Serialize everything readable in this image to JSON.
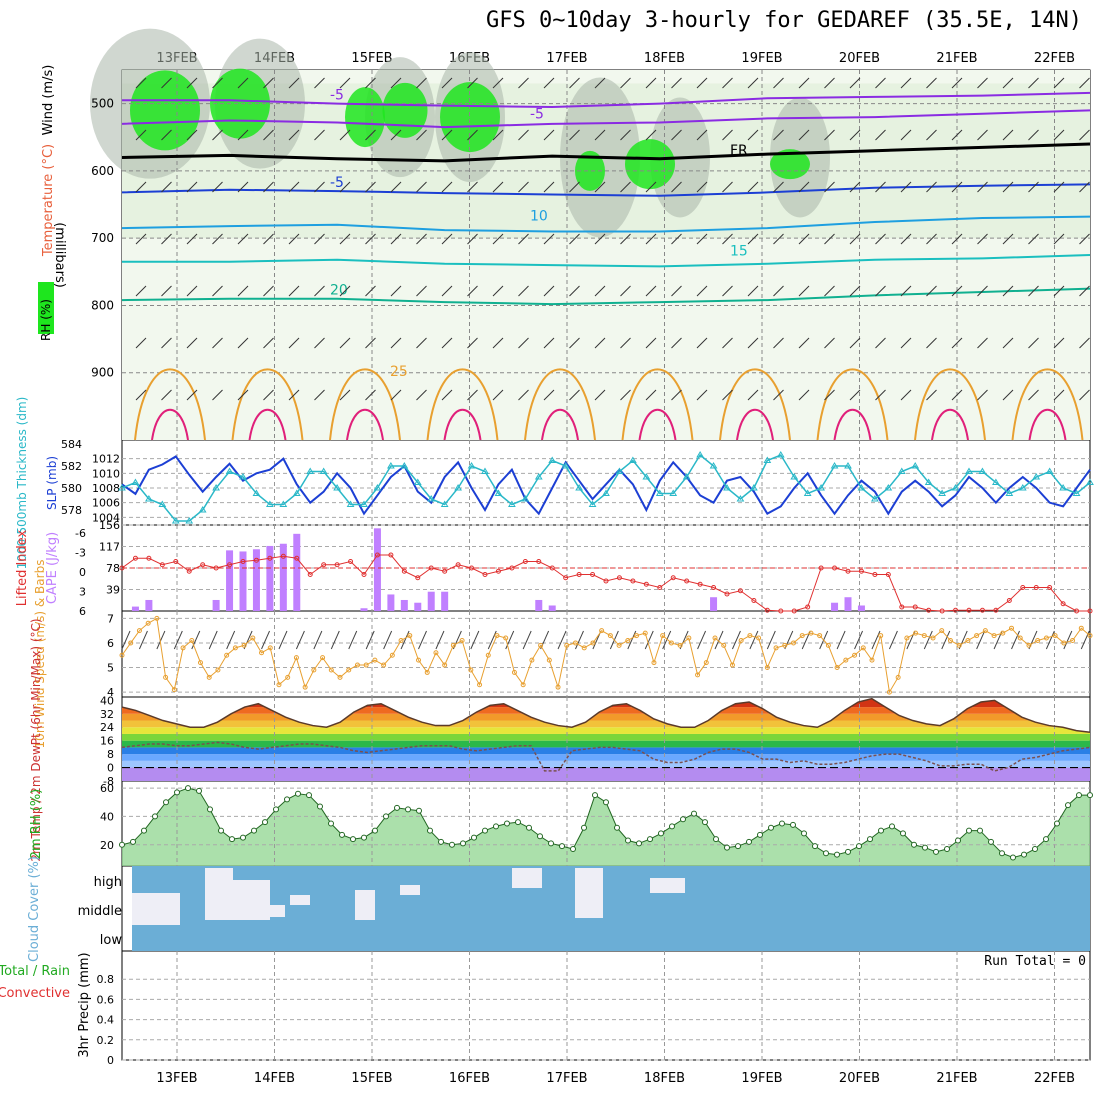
{
  "title": "GFS 0~10day 3-hourly for GEDAREF (35.5E, 14N)",
  "colors": {
    "rh_green": "#1ee61e",
    "rh_light": "#e6f2e0",
    "rh_gray": "#a9b6a9",
    "temperature_label": "#e8603c",
    "wind_label": "#000000",
    "slp": "#1c3fd4",
    "thickness": "#2ab8c8",
    "lifted_index": "#e03030",
    "cape": "#c080ff",
    "wind10m": "#e8a030",
    "rh2m": "#22aa22",
    "cloud": "#6baed6",
    "precip_total": "#22aa22",
    "precip_conv": "#e03030"
  },
  "chart_data": [
    {
      "panel": "upper-air",
      "type": "heatmap",
      "xlabels": [
        "13FEB",
        "14FEB",
        "15FEB",
        "16FEB",
        "17FEB",
        "18FEB",
        "19FEB",
        "20FEB",
        "21FEB",
        "22FEB"
      ],
      "ylabel": "(millibars)",
      "side_labels": [
        "RH (%)",
        "Temperature (°C)",
        "Wind (m/s)"
      ],
      "yticks": [
        500,
        600,
        700,
        800,
        900
      ],
      "ylim": [
        1000,
        450
      ],
      "isotherms": [
        {
          "label": "-5",
          "color": "#8a2be2",
          "values": [
            495,
            495,
            500,
            503,
            505,
            500,
            492,
            490,
            488,
            484
          ]
        },
        {
          "label": "-5",
          "color": "#8a2be2",
          "values": [
            530,
            525,
            528,
            535,
            530,
            528,
            522,
            520,
            515,
            510
          ]
        },
        {
          "label": "FR",
          "color": "#000000",
          "values": [
            580,
            577,
            582,
            585,
            578,
            582,
            575,
            570,
            565,
            560
          ]
        },
        {
          "label": "-5",
          "color": "#1c3fd4",
          "values": [
            632,
            628,
            630,
            633,
            635,
            637,
            632,
            625,
            622,
            620
          ]
        },
        {
          "label": "10",
          "color": "#1e9fe0",
          "values": [
            685,
            682,
            680,
            688,
            690,
            690,
            685,
            676,
            670,
            668
          ]
        },
        {
          "label": "15",
          "color": "#1abfbf",
          "values": [
            735,
            735,
            732,
            738,
            740,
            742,
            738,
            732,
            730,
            725
          ]
        },
        {
          "label": "20",
          "color": "#10b090",
          "values": [
            792,
            790,
            790,
            795,
            798,
            795,
            792,
            785,
            780,
            775
          ]
        }
      ],
      "boundary_layer_labels": [
        "25"
      ]
    },
    {
      "panel": "slp-thickness",
      "type": "line",
      "series": [
        {
          "name": "SLP (mb)",
          "axis": "right",
          "values": [
            1008.5,
            1007.2,
            1010.5,
            1011.2,
            1012.3,
            1009.8,
            1007.5,
            1009.5,
            1011.3,
            1009.0,
            1010.0,
            1010.5,
            1012.0,
            1008.5,
            1006.0,
            1007.5,
            1010.0,
            1008.0,
            1004.5,
            1007.0,
            1009.5,
            1011.0,
            1007.5,
            1006.0,
            1009.5,
            1011.5,
            1008.0,
            1005.0,
            1008.5,
            1010.5,
            1006.5,
            1004.5,
            1008.0,
            1011.5,
            1009.0,
            1006.5,
            1008.5,
            1010.5,
            1008.5,
            1005.0,
            1009.0,
            1011.5,
            1009.5,
            1007.0,
            1006.0,
            1009.0,
            1009.5,
            1007.5,
            1004.5,
            1005.5,
            1008.0,
            1010.0,
            1007.0,
            1004.5,
            1007.0,
            1009.0,
            1007.5,
            1004.5,
            1007.5,
            1009.0,
            1007.5,
            1005.5,
            1007.0,
            1009.5,
            1008.0,
            1006.0,
            1008.0,
            1009.5,
            1008.0,
            1006.0,
            1005.5,
            1008.0,
            1010.5
          ]
        },
        {
          "name": "Thickness (dm)",
          "axis": "left",
          "values": [
            580.0,
            580.5,
            579.0,
            578.5,
            577.0,
            577.0,
            578.0,
            580.0,
            581.5,
            581.0,
            579.5,
            578.5,
            578.5,
            579.5,
            581.5,
            581.5,
            580.0,
            578.5,
            578.5,
            580.0,
            582.0,
            582.0,
            580.5,
            579.0,
            578.5,
            580.0,
            582.0,
            581.5,
            579.5,
            578.5,
            579.0,
            581.0,
            582.5,
            582.0,
            580.0,
            578.5,
            579.5,
            581.5,
            582.5,
            581.0,
            579.5,
            579.5,
            581.0,
            583.0,
            582.0,
            580.0,
            579.0,
            580.0,
            582.5,
            583.0,
            581.0,
            579.5,
            580.0,
            582.0,
            582.0,
            580.0,
            579.0,
            580.0,
            581.5,
            582.0,
            580.5,
            579.5,
            580.0,
            581.5,
            581.5,
            580.5,
            579.5,
            580.0,
            581.0,
            581.5,
            580.0,
            579.5,
            580.5
          ]
        }
      ],
      "left_axis": {
        "label": "1000-500mb Thickness (dm)",
        "ticks": [
          578,
          580,
          582,
          584
        ],
        "lim": [
          577,
          584
        ]
      },
      "right_axis": {
        "label": "SLP (mb)",
        "ticks": [
          1004,
          1006,
          1008,
          1010,
          1012
        ],
        "lim": [
          1003.5,
          1014
        ]
      }
    },
    {
      "panel": "lifted-cape",
      "type": "bar",
      "left_axis": {
        "label": "Lifted Index",
        "ticks": [
          "-6",
          "-3",
          "0",
          "3",
          "6"
        ],
        "lim": [
          6,
          -6
        ]
      },
      "right_axis": {
        "label": "CAPE (J/kg)",
        "ticks": [
          39,
          78,
          117,
          156
        ],
        "lim": [
          0,
          156
        ]
      },
      "cape_values": [
        0,
        8,
        20,
        0,
        0,
        0,
        0,
        20,
        110,
        108,
        112,
        118,
        122,
        140,
        0,
        0,
        0,
        0,
        5,
        150,
        30,
        20,
        15,
        35,
        35,
        0,
        0,
        0,
        0,
        0,
        0,
        20,
        10,
        0,
        0,
        0,
        0,
        0,
        0,
        0,
        0,
        0,
        0,
        0,
        25,
        0,
        0,
        0,
        0,
        0,
        0,
        0,
        0,
        15,
        25,
        10,
        0,
        0,
        0,
        0,
        0,
        0,
        0,
        0,
        0,
        0,
        0,
        0,
        0,
        0,
        0,
        0,
        0
      ],
      "lifted_index": [
        0,
        -1.5,
        -1.5,
        -0.5,
        -1,
        0.5,
        -0.5,
        0,
        -0.5,
        -1,
        -1.2,
        -1.5,
        -1.8,
        -1.5,
        1,
        -0.5,
        -0.5,
        -1,
        1,
        -2,
        -2,
        0.5,
        1.5,
        0,
        0.5,
        -0.5,
        0,
        1,
        0.5,
        0,
        -1,
        -1,
        0,
        1.5,
        1,
        1,
        2,
        1.5,
        2,
        2.5,
        3,
        1.5,
        2,
        2.5,
        3,
        4,
        3.5,
        5,
        6.5,
        7,
        7.5,
        6,
        0,
        0,
        0.5,
        0.5,
        1,
        1,
        6,
        6,
        6.5,
        7,
        6.5,
        6.5,
        6.5,
        6.5,
        5,
        3,
        3,
        3,
        5.5,
        7,
        7
      ]
    },
    {
      "panel": "wind10m",
      "type": "line",
      "label": "10m Wind Speed (m/s) & Barbs",
      "ticks": [
        4,
        5,
        6,
        7
      ],
      "lim": [
        3.8,
        7.3
      ],
      "values": [
        5.5,
        6.0,
        6.5,
        6.8,
        7.0,
        4.6,
        4.1,
        5.8,
        6.1,
        5.2,
        4.6,
        4.9,
        5.5,
        5.8,
        5.9,
        6.2,
        5.6,
        5.8,
        4.3,
        4.6,
        5.4,
        4.2,
        4.9,
        5.4,
        4.9,
        4.6,
        4.9,
        5.1,
        5.1,
        5.3,
        5.1,
        5.5,
        6.1,
        6.3,
        5.3,
        4.8,
        5.6,
        5.1,
        5.9,
        6.1,
        4.9,
        4.3,
        5.5,
        6.3,
        6.2,
        4.8,
        4.3,
        5.3,
        5.9,
        5.3,
        4.2,
        5.9,
        6.0,
        5.8,
        6.0,
        6.5,
        6.3,
        5.9,
        6.1,
        6.3,
        6.4,
        5.2,
        6.3,
        6.0,
        5.9,
        6.2,
        4.7,
        5.2,
        6.2,
        5.9,
        5.1,
        6.1,
        6.3,
        6.2,
        5.0,
        5.8,
        5.9,
        6.0,
        6.3,
        6.4,
        6.3,
        5.9,
        5.0,
        5.3,
        5.5,
        5.8,
        5.3,
        6.3,
        4.0,
        4.6,
        6.2,
        6.4,
        6.3,
        6.2,
        6.5,
        6.1,
        5.9,
        6.1,
        6.3,
        6.5,
        6.3,
        6.4,
        6.6,
        6.2,
        5.9,
        6.1,
        6.2,
        6.3,
        6.0,
        6.1,
        6.6,
        6.3
      ]
    },
    {
      "panel": "temp2m",
      "type": "area",
      "label": "2m Temp / 2m DewPt (6hr Min/Max) (°C)",
      "ticks": [
        -8,
        0,
        8,
        16,
        24,
        32,
        40
      ],
      "lim": [
        -8,
        42
      ],
      "temperature": [
        36,
        34,
        31,
        28,
        26,
        24,
        24,
        27,
        32,
        36,
        38,
        34,
        30,
        27,
        25,
        24,
        27,
        33,
        37,
        38,
        34,
        30,
        27,
        25,
        25,
        28,
        33,
        37,
        38,
        34,
        30,
        27,
        25,
        24,
        27,
        33,
        37,
        38,
        34,
        29,
        26,
        24,
        24,
        28,
        34,
        38,
        39,
        35,
        30,
        27,
        25,
        24,
        28,
        34,
        39,
        41,
        36,
        31,
        28,
        26,
        25,
        29,
        35,
        39,
        40,
        35,
        30,
        27,
        25,
        24,
        22,
        21
      ],
      "dewpoint": [
        12,
        13,
        14,
        14,
        13,
        13,
        14,
        15,
        14,
        12,
        11,
        12,
        13,
        14,
        14,
        13,
        12,
        10,
        9,
        10,
        11,
        12,
        13,
        13,
        13,
        11,
        10,
        11,
        12,
        13,
        13,
        -2,
        -2,
        10,
        11,
        12,
        12,
        11,
        10,
        5,
        3,
        3,
        5,
        9,
        11,
        11,
        9,
        5,
        5,
        3,
        4,
        2,
        2,
        3,
        5,
        7,
        8,
        8,
        6,
        4,
        1,
        1,
        2,
        2,
        -2,
        0,
        5,
        6,
        8,
        10,
        11,
        12
      ]
    },
    {
      "panel": "rh2m",
      "type": "area",
      "label": "2m RH (%)",
      "ticks": [
        20,
        40,
        60
      ],
      "lim": [
        5,
        65
      ],
      "values": [
        20,
        22,
        30,
        40,
        50,
        57,
        60,
        58,
        45,
        30,
        24,
        25,
        30,
        36,
        45,
        52,
        56,
        55,
        47,
        35,
        27,
        24,
        25,
        30,
        40,
        46,
        45,
        44,
        30,
        22,
        20,
        21,
        25,
        30,
        33,
        35,
        36,
        32,
        26,
        21,
        19,
        17,
        32,
        55,
        50,
        32,
        23,
        21,
        24,
        28,
        33,
        38,
        42,
        36,
        24,
        18,
        19,
        22,
        27,
        32,
        35,
        34,
        28,
        19,
        14,
        13,
        15,
        19,
        24,
        30,
        33,
        28,
        20,
        18,
        15,
        17,
        23,
        30,
        30,
        22,
        14,
        11,
        13,
        17,
        24,
        35,
        48,
        55,
        55
      ]
    },
    {
      "panel": "cloud",
      "type": "bar",
      "label": "Cloud Cover (%)",
      "levels": [
        "high",
        "middle",
        "low"
      ]
    },
    {
      "panel": "precip",
      "type": "bar",
      "label": "3hr Precip (mm)",
      "side_labels": [
        "Total / Rain",
        "Convective"
      ],
      "ticks": [
        0,
        0.2,
        0.4,
        0.6,
        0.8
      ],
      "lim": [
        0,
        1
      ],
      "run_total_label": "Run Total = 0",
      "values": []
    }
  ]
}
